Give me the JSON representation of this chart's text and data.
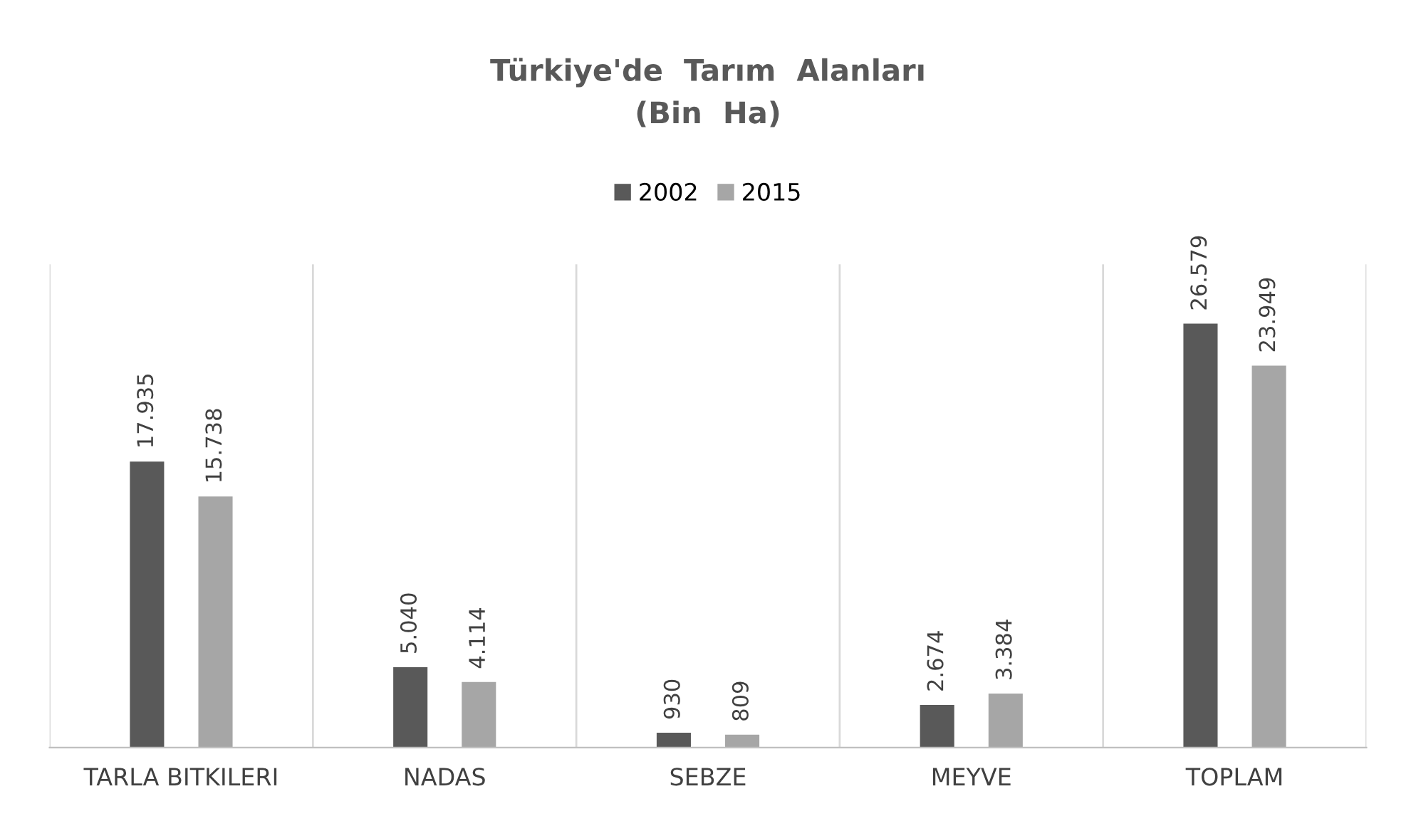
{
  "chart_data": {
    "type": "bar",
    "title": "Türkiye'de  Tarım  Alanları\n(Bin  Ha)",
    "categories": [
      "TARLA BITKILERI",
      "NADAS",
      "SEBZE",
      "MEYVE",
      "TOPLAM"
    ],
    "series": [
      {
        "name": "2002",
        "color": "#595959",
        "values": [
          17935,
          5040,
          930,
          2674,
          26579
        ],
        "value_labels": [
          "17.935",
          "5.040",
          "930",
          "2.674",
          "26.579"
        ]
      },
      {
        "name": "2015",
        "color": "#a6a6a6",
        "values": [
          15738,
          4114,
          809,
          3384,
          23949
        ],
        "value_labels": [
          "15.738",
          "4.114",
          "809",
          "3.384",
          "23.949"
        ]
      }
    ],
    "legend": "top",
    "grid": "x"
  }
}
